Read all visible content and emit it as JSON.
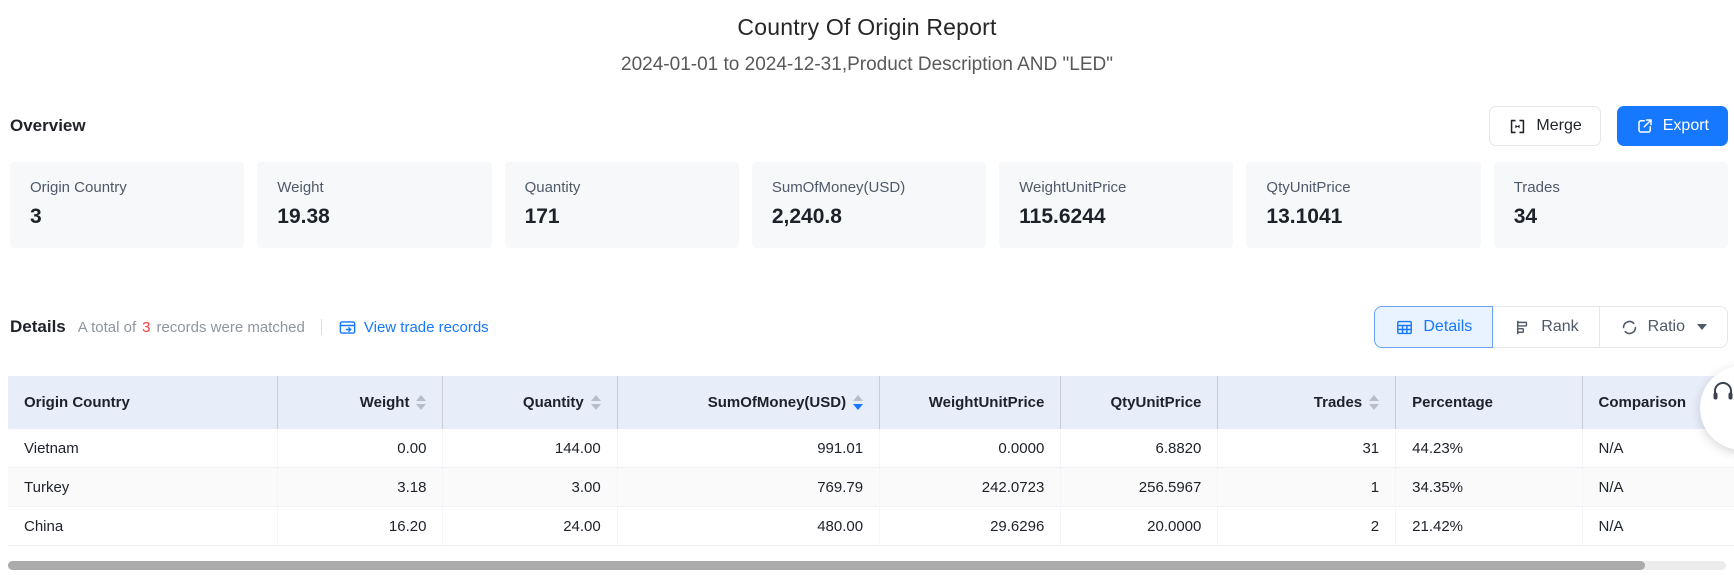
{
  "header": {
    "title": "Country Of Origin Report",
    "subtitle": "2024-01-01 to 2024-12-31,Product Description AND \"LED\""
  },
  "overview": {
    "heading": "Overview",
    "merge_label": "Merge",
    "export_label": "Export",
    "cards": [
      {
        "label": "Origin Country",
        "value": "3"
      },
      {
        "label": "Weight",
        "value": "19.38"
      },
      {
        "label": "Quantity",
        "value": "171"
      },
      {
        "label": "SumOfMoney(USD)",
        "value": "2,240.8"
      },
      {
        "label": "WeightUnitPrice",
        "value": "115.6244"
      },
      {
        "label": "QtyUnitPrice",
        "value": "13.1041"
      },
      {
        "label": "Trades",
        "value": "34"
      }
    ]
  },
  "details": {
    "heading": "Details",
    "summary_prefix": "A total of",
    "summary_count": "3",
    "summary_suffix": "records were matched",
    "link_label": "View trade records",
    "link_icon": "trade-records-icon",
    "view_tabs": [
      {
        "label": "Details",
        "icon": "table-icon",
        "active": true,
        "has_caret": false
      },
      {
        "label": "Rank",
        "icon": "rank-icon",
        "active": false,
        "has_caret": false
      },
      {
        "label": "Ratio",
        "icon": "ratio-icon",
        "active": false,
        "has_caret": true
      }
    ]
  },
  "table": {
    "columns": [
      {
        "label": "Origin Country",
        "align": "left",
        "sortable": false,
        "sort": null
      },
      {
        "label": "Weight",
        "align": "right",
        "sortable": true,
        "sort": null
      },
      {
        "label": "Quantity",
        "align": "right",
        "sortable": true,
        "sort": null
      },
      {
        "label": "SumOfMoney(USD)",
        "align": "right",
        "sortable": true,
        "sort": "desc"
      },
      {
        "label": "WeightUnitPrice",
        "align": "right",
        "sortable": false,
        "sort": null
      },
      {
        "label": "QtyUnitPrice",
        "align": "right",
        "sortable": false,
        "sort": null
      },
      {
        "label": "Trades",
        "align": "right",
        "sortable": true,
        "sort": null
      },
      {
        "label": "Percentage",
        "align": "left",
        "sortable": false,
        "sort": null
      },
      {
        "label": "Comparison",
        "align": "left",
        "sortable": false,
        "sort": null
      }
    ],
    "rows": [
      [
        "Vietnam",
        "0.00",
        "144.00",
        "991.01",
        "0.0000",
        "6.8820",
        "31",
        "44.23%",
        "N/A"
      ],
      [
        "Turkey",
        "3.18",
        "3.00",
        "769.79",
        "242.0723",
        "256.5967",
        "1",
        "34.35%",
        "N/A"
      ],
      [
        "China",
        "16.20",
        "24.00",
        "480.00",
        "29.6296",
        "20.0000",
        "2",
        "21.42%",
        "N/A"
      ]
    ]
  },
  "floating_button": {
    "icon": "headset-icon"
  },
  "colors": {
    "accent": "#1677ff",
    "count_red": "#f53f3f",
    "table_header_bg": "#e8edfa",
    "card_bg": "#f7f8fa",
    "active_tab_bg": "#e9f2ff"
  }
}
